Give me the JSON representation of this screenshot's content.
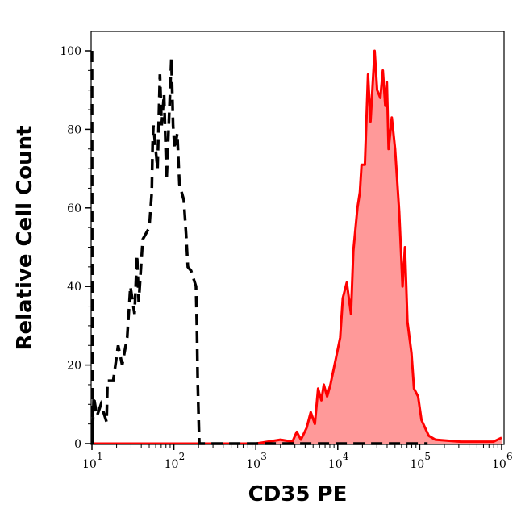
{
  "chart_data": {
    "type": "area",
    "title": "",
    "xlabel": "CD35 PE",
    "ylabel": "Relative Cell Count",
    "x_scale": "log",
    "xlim": [
      10,
      1000000
    ],
    "ylim": [
      0,
      100
    ],
    "x_ticks": [
      {
        "base": "10",
        "exp": "1"
      },
      {
        "base": "10",
        "exp": "2"
      },
      {
        "base": "10",
        "exp": "3"
      },
      {
        "base": "10",
        "exp": "4"
      },
      {
        "base": "10",
        "exp": "5"
      },
      {
        "base": "10",
        "exp": "6"
      }
    ],
    "y_ticks": [
      "0",
      "20",
      "40",
      "60",
      "80",
      "100"
    ],
    "grid": false,
    "series": [
      {
        "style": "dashed-line",
        "color": "#000000",
        "x": [
          10,
          10.1,
          10.5,
          11.5,
          12.9,
          15.1,
          15.5,
          18.2,
          20.9,
          23.4,
          26.9,
          29.5,
          33.1,
          35.5,
          37.2,
          41.7,
          50.1,
          53.7,
          55,
          56.2,
          63.1,
          67.6,
          70.8,
          75.9,
          81.3,
          93.3,
          97.7,
          102,
          110,
          117,
          132,
          141,
          148,
          162,
          186,
          191,
          195,
          204,
          1000,
          10000,
          125000
        ],
        "y": [
          100,
          0,
          12,
          7,
          10,
          5.5,
          16,
          16,
          25,
          20,
          27,
          40,
          33,
          48,
          36,
          52,
          55,
          64,
          76,
          81,
          70,
          94,
          81,
          89,
          67,
          98,
          81,
          75,
          79,
          66,
          62,
          53,
          45,
          44,
          40,
          29,
          16,
          0,
          0,
          0,
          0
        ]
      },
      {
        "style": "filled",
        "color": "#ff0000",
        "fill": "#ff9999",
        "x": [
          10,
          1000,
          2000,
          2800,
          3160,
          3550,
          4170,
          4680,
          5250,
          5750,
          6310,
          6760,
          7410,
          8130,
          9550,
          10700,
          11500,
          12900,
          14500,
          15500,
          17400,
          18600,
          19500,
          21400,
          23400,
          25100,
          28200,
          30200,
          33100,
          35500,
          38000,
          39800,
          41700,
          45700,
          50100,
          56200,
          61700,
          66100,
          70800,
          79400,
          85100,
          95500,
          105000,
          129000,
          155000,
          316000,
          794000,
          1000000
        ],
        "y": [
          0,
          0,
          1,
          0.5,
          3,
          1,
          4,
          8,
          5,
          14,
          11,
          15,
          12,
          15,
          22,
          27,
          37,
          41,
          33,
          49,
          60,
          64,
          71,
          71,
          94,
          82,
          100,
          90,
          88,
          95,
          86,
          92,
          75,
          83,
          75,
          59,
          40,
          50,
          31,
          23,
          14,
          12,
          6,
          2,
          1,
          0.5,
          0.5,
          1.5
        ]
      }
    ]
  }
}
